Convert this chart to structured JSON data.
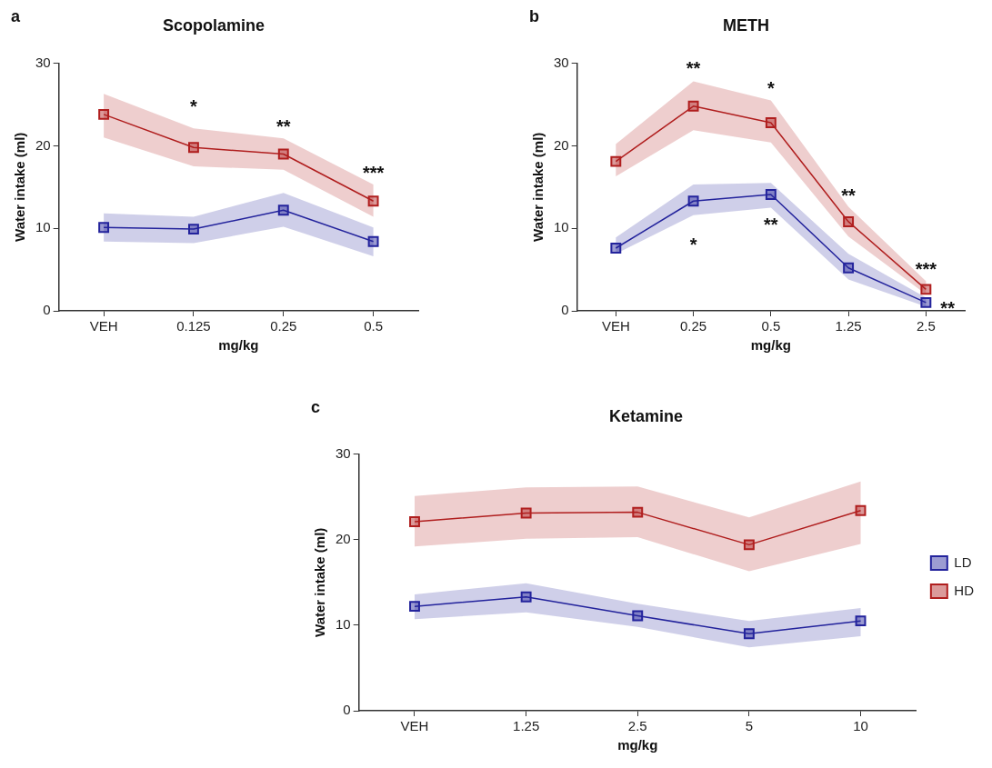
{
  "chart_data": [
    {
      "type": "line",
      "title": "Scopolamine",
      "xlabel": "mg/kg",
      "ylabel": "Water intake (ml)",
      "categories": [
        "VEH",
        "0.125",
        "0.25",
        "0.5"
      ],
      "ylim": [
        0,
        30
      ],
      "yticks": [
        0,
        10,
        20,
        30
      ],
      "grid": false,
      "legend": false,
      "marker": "square",
      "line_style": "solid",
      "series": [
        {
          "color": "#23239c",
          "values": [
            10.1,
            9.9,
            12.2,
            8.4
          ],
          "lower": [
            8.4,
            8.2,
            10.2,
            6.6
          ],
          "upper": [
            11.8,
            11.4,
            14.3,
            10.1
          ]
        },
        {
          "color": "#b01e1e",
          "values": [
            23.8,
            19.8,
            19.0,
            13.3
          ],
          "lower": [
            21.0,
            17.5,
            17.1,
            11.4
          ],
          "upper": [
            26.3,
            22.1,
            20.9,
            15.3
          ]
        }
      ],
      "annotations": [
        "a",
        {
          "text": "*",
          "x": "0.125",
          "y": 19.8
        },
        {
          "text": "**",
          "x": "0.25",
          "y": 19.0
        },
        {
          "text": "***",
          "x": "0.5",
          "y": 13.3
        }
      ]
    },
    {
      "type": "line",
      "title": "METH",
      "xlabel": "mg/kg",
      "ylabel": "Water intake (ml)",
      "categories": [
        "VEH",
        "0.25",
        "0.5",
        "1.25",
        "2.5"
      ],
      "ylim": [
        0,
        30
      ],
      "yticks": [
        0,
        10,
        20,
        30
      ],
      "grid": false,
      "legend": false,
      "marker": "square",
      "line_style": "solid",
      "series": [
        {
          "color": "#23239c",
          "values": [
            7.6,
            13.3,
            14.1,
            5.2,
            1.0
          ],
          "lower": [
            6.9,
            11.6,
            12.5,
            3.8,
            0.5
          ],
          "upper": [
            8.9,
            15.3,
            15.5,
            6.9,
            1.6
          ]
        },
        {
          "color": "#b01e1e",
          "values": [
            18.1,
            24.8,
            22.8,
            10.8,
            2.6
          ],
          "lower": [
            16.3,
            21.9,
            20.4,
            9.0,
            2.0
          ],
          "upper": [
            20.2,
            27.8,
            25.5,
            12.6,
            3.6
          ]
        }
      ],
      "annotations": [
        "b",
        {
          "text": "**",
          "x": "0.25",
          "y": 24.8
        },
        {
          "text": "*",
          "x": "0.5",
          "y": 22.8
        },
        {
          "text": "**",
          "x": "1.25",
          "y": 10.8
        },
        {
          "text": "***",
          "x": "2.5",
          "y": 2.6
        },
        {
          "text": "*",
          "x": "0.25",
          "y": 13.3
        },
        {
          "text": "**",
          "x": "0.5",
          "y": 14.1
        },
        {
          "text": "**",
          "x": "2.5",
          "y": 1.0
        }
      ]
    },
    {
      "type": "line",
      "title": "Ketamine",
      "xlabel": "mg/kg",
      "ylabel": "Water intake (ml)",
      "categories": [
        "VEH",
        "1.25",
        "2.5",
        "5",
        "10"
      ],
      "ylim": [
        0,
        30
      ],
      "yticks": [
        0,
        10,
        20,
        30
      ],
      "grid": false,
      "legend": "right",
      "marker": "square",
      "line_style": "solid",
      "series": [
        {
          "name": "LD",
          "color": "#23239c",
          "values": [
            12.2,
            13.3,
            11.1,
            9.0,
            10.5
          ],
          "lower": [
            10.7,
            11.5,
            9.8,
            7.4,
            8.7
          ],
          "upper": [
            13.6,
            14.9,
            12.5,
            10.5,
            12.0
          ]
        },
        {
          "name": "HD",
          "color": "#b01e1e",
          "values": [
            22.1,
            23.1,
            23.2,
            19.4,
            23.4
          ],
          "lower": [
            19.2,
            20.1,
            20.3,
            16.3,
            19.5
          ],
          "upper": [
            25.1,
            26.1,
            26.2,
            22.6,
            26.8
          ]
        }
      ],
      "annotations": [
        "c"
      ]
    }
  ]
}
